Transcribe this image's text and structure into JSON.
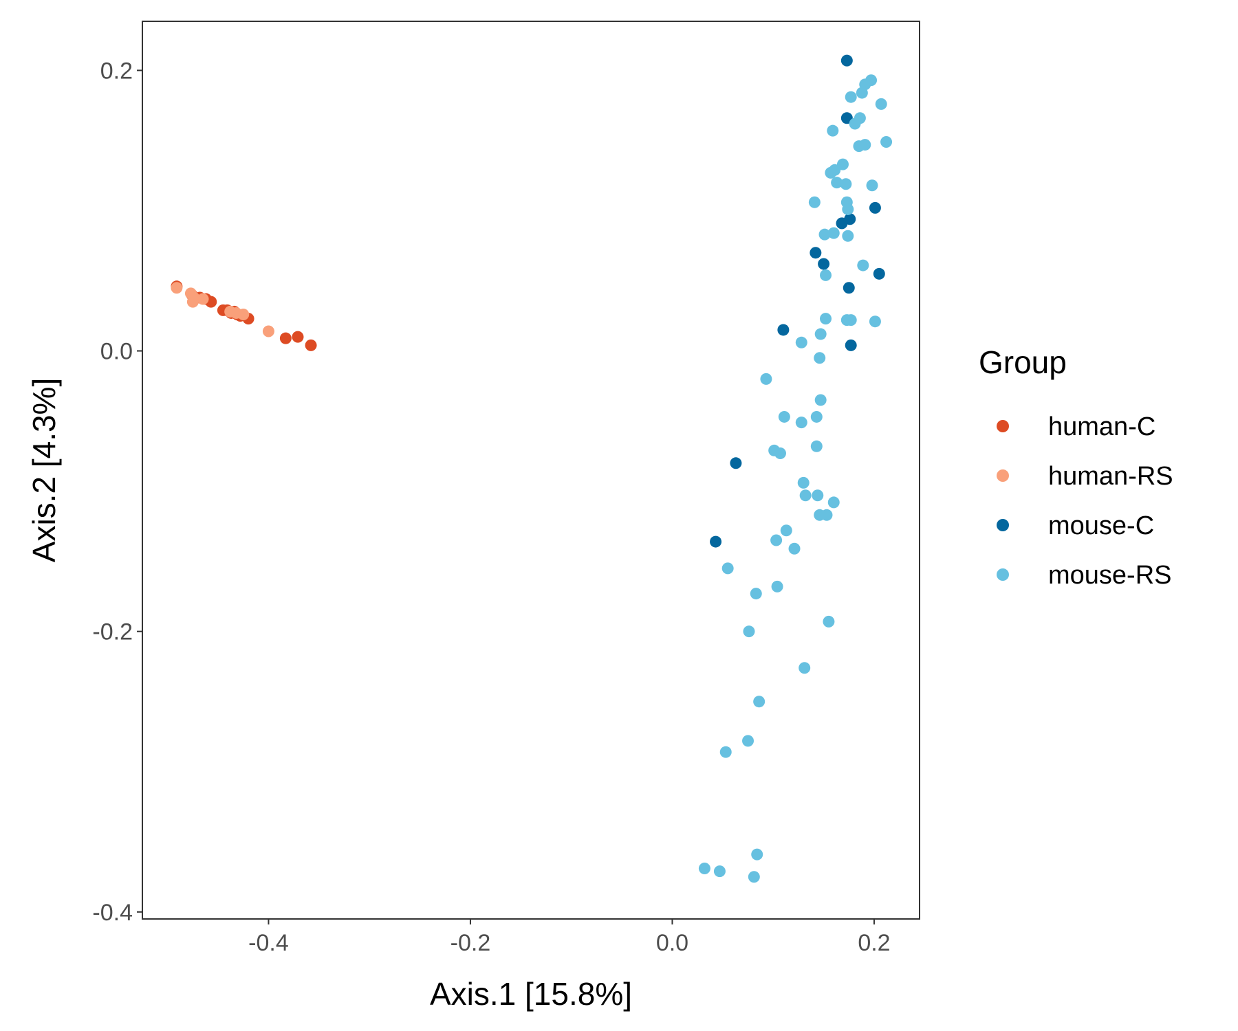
{
  "chart_data": {
    "type": "scatter",
    "title": "",
    "xlabel": "Axis.1   [15.8%]",
    "ylabel": "Axis.2   [4.3%]",
    "xlim": [
      -0.525,
      0.245
    ],
    "ylim": [
      -0.405,
      0.235
    ],
    "x_ticks": [
      -0.4,
      -0.2,
      0.0,
      0.2
    ],
    "x_tick_labels": [
      "-0.4",
      "-0.2",
      "0.0",
      "0.2"
    ],
    "y_ticks": [
      -0.4,
      -0.2,
      0.0,
      0.2
    ],
    "y_tick_labels": [
      "-0.4",
      "-0.2",
      "0.0",
      "0.2"
    ],
    "grid": false,
    "legend": {
      "title": "Group",
      "position": "right"
    },
    "series": [
      {
        "name": "human-C",
        "color": "#DD4B23",
        "points": [
          [
            -0.491,
            0.046
          ],
          [
            -0.476,
            0.04
          ],
          [
            -0.468,
            0.038
          ],
          [
            -0.462,
            0.037
          ],
          [
            -0.457,
            0.035
          ],
          [
            -0.445,
            0.029
          ],
          [
            -0.441,
            0.029
          ],
          [
            -0.437,
            0.027
          ],
          [
            -0.434,
            0.028
          ],
          [
            -0.431,
            0.026
          ],
          [
            -0.428,
            0.025
          ],
          [
            -0.42,
            0.023
          ],
          [
            -0.383,
            0.009
          ],
          [
            -0.371,
            0.01
          ],
          [
            -0.358,
            0.004
          ]
        ]
      },
      {
        "name": "human-RS",
        "color": "#F9A07A",
        "points": [
          [
            -0.491,
            0.045
          ],
          [
            -0.477,
            0.041
          ],
          [
            -0.475,
            0.035
          ],
          [
            -0.474,
            0.038
          ],
          [
            -0.465,
            0.037
          ],
          [
            -0.438,
            0.028
          ],
          [
            -0.432,
            0.027
          ],
          [
            -0.425,
            0.026
          ],
          [
            -0.4,
            0.014
          ]
        ]
      },
      {
        "name": "mouse-C",
        "color": "#04679E",
        "points": [
          [
            0.173,
            0.207
          ],
          [
            0.173,
            0.166
          ],
          [
            0.201,
            0.102
          ],
          [
            0.176,
            0.094
          ],
          [
            0.168,
            0.091
          ],
          [
            0.142,
            0.07
          ],
          [
            0.15,
            0.062
          ],
          [
            0.205,
            0.055
          ],
          [
            0.175,
            0.045
          ],
          [
            0.11,
            0.015
          ],
          [
            0.177,
            0.004
          ],
          [
            0.063,
            -0.08
          ],
          [
            0.043,
            -0.136
          ]
        ]
      },
      {
        "name": "mouse-RS",
        "color": "#66C0E0",
        "points": [
          [
            0.197,
            0.193
          ],
          [
            0.191,
            0.19
          ],
          [
            0.188,
            0.184
          ],
          [
            0.177,
            0.181
          ],
          [
            0.207,
            0.176
          ],
          [
            0.186,
            0.166
          ],
          [
            0.181,
            0.162
          ],
          [
            0.159,
            0.157
          ],
          [
            0.212,
            0.149
          ],
          [
            0.191,
            0.147
          ],
          [
            0.185,
            0.146
          ],
          [
            0.169,
            0.133
          ],
          [
            0.161,
            0.129
          ],
          [
            0.157,
            0.127
          ],
          [
            0.163,
            0.12
          ],
          [
            0.172,
            0.119
          ],
          [
            0.198,
            0.118
          ],
          [
            0.141,
            0.106
          ],
          [
            0.173,
            0.106
          ],
          [
            0.174,
            0.101
          ],
          [
            0.151,
            0.083
          ],
          [
            0.16,
            0.084
          ],
          [
            0.174,
            0.082
          ],
          [
            0.189,
            0.061
          ],
          [
            0.152,
            0.054
          ],
          [
            0.152,
            0.023
          ],
          [
            0.173,
            0.022
          ],
          [
            0.177,
            0.022
          ],
          [
            0.201,
            0.021
          ],
          [
            0.147,
            0.012
          ],
          [
            0.128,
            0.006
          ],
          [
            0.146,
            -0.005
          ],
          [
            0.093,
            -0.02
          ],
          [
            0.147,
            -0.035
          ],
          [
            0.111,
            -0.047
          ],
          [
            0.143,
            -0.047
          ],
          [
            0.128,
            -0.051
          ],
          [
            0.143,
            -0.068
          ],
          [
            0.101,
            -0.071
          ],
          [
            0.107,
            -0.073
          ],
          [
            0.13,
            -0.094
          ],
          [
            0.132,
            -0.103
          ],
          [
            0.144,
            -0.103
          ],
          [
            0.16,
            -0.108
          ],
          [
            0.146,
            -0.117
          ],
          [
            0.153,
            -0.117
          ],
          [
            0.113,
            -0.128
          ],
          [
            0.103,
            -0.135
          ],
          [
            0.121,
            -0.141
          ],
          [
            0.055,
            -0.155
          ],
          [
            0.104,
            -0.168
          ],
          [
            0.083,
            -0.173
          ],
          [
            0.155,
            -0.193
          ],
          [
            0.076,
            -0.2
          ],
          [
            0.131,
            -0.226
          ],
          [
            0.086,
            -0.25
          ],
          [
            0.075,
            -0.278
          ],
          [
            0.053,
            -0.286
          ],
          [
            0.084,
            -0.359
          ],
          [
            0.032,
            -0.369
          ],
          [
            0.047,
            -0.371
          ],
          [
            0.081,
            -0.375
          ]
        ]
      }
    ]
  }
}
